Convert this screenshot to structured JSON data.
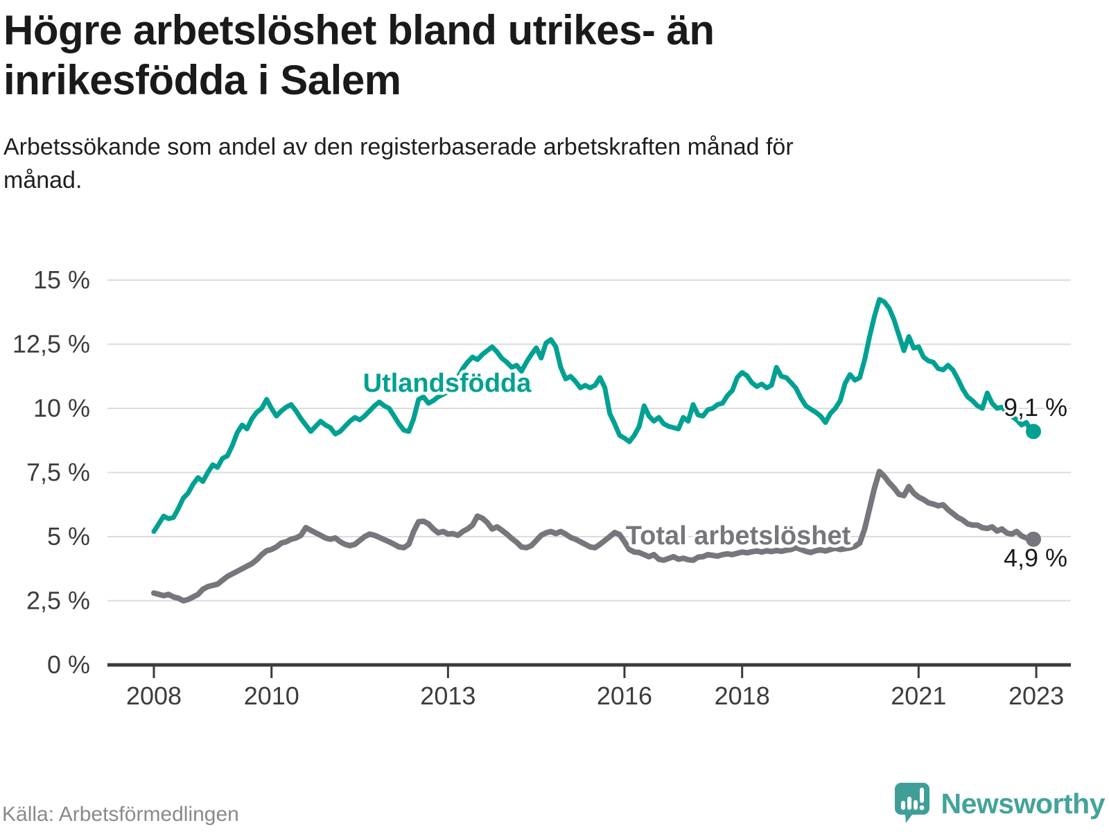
{
  "header": {
    "title": "Högre arbetslöshet bland utrikes- än inrikesfödda i Salem",
    "subtitle": "Arbetssökande som andel av den registerbaserade arbetskraften månad för månad."
  },
  "chart_data": {
    "type": "line",
    "x_start_year": 2008,
    "points_per_year": 12,
    "x_end": "2022-12",
    "ylim": [
      0,
      15
    ],
    "grid": "horizontal",
    "legend": "inline-labels",
    "colors": {
      "foreign_born": "#00a192",
      "total": "#76767c",
      "grid": "#dcdcdc",
      "axis": "#3b3b3b",
      "tick_text": "#3c3c3c",
      "end_label_text": "#1a1a1a"
    },
    "y_ticks": [
      {
        "value": 15,
        "label": "15 %"
      },
      {
        "value": 12.5,
        "label": "12,5 %"
      },
      {
        "value": 10,
        "label": "10 %"
      },
      {
        "value": 7.5,
        "label": "7,5 %"
      },
      {
        "value": 5,
        "label": "5 %"
      },
      {
        "value": 2.5,
        "label": "2,5 %"
      },
      {
        "value": 0,
        "label": "0 %"
      }
    ],
    "x_ticks": [
      {
        "year": 2008,
        "label": "2008"
      },
      {
        "year": 2010,
        "label": "2010"
      },
      {
        "year": 2013,
        "label": "2013"
      },
      {
        "year": 2016,
        "label": "2016"
      },
      {
        "year": 2018,
        "label": "2018"
      },
      {
        "year": 2021,
        "label": "2021"
      },
      {
        "year": 2023,
        "label": "2023"
      }
    ],
    "series": [
      {
        "name": "Utlandsfödda",
        "color": "#00a192",
        "end_label": "9,1 %",
        "end_value": 9.1,
        "values": [
          5.2,
          5.5,
          5.8,
          5.7,
          5.75,
          6.1,
          6.5,
          6.7,
          7.05,
          7.3,
          7.15,
          7.5,
          7.8,
          7.7,
          8.05,
          8.15,
          8.55,
          9.05,
          9.35,
          9.2,
          9.6,
          9.85,
          10.0,
          10.35,
          10.0,
          9.7,
          9.9,
          10.05,
          10.15,
          9.9,
          9.6,
          9.35,
          9.1,
          9.3,
          9.5,
          9.35,
          9.25,
          9.0,
          9.1,
          9.3,
          9.5,
          9.65,
          9.55,
          9.7,
          9.9,
          10.1,
          10.25,
          10.1,
          10.0,
          9.7,
          9.4,
          9.15,
          9.1,
          9.6,
          10.35,
          10.45,
          10.2,
          10.3,
          10.45,
          10.55,
          10.65,
          10.9,
          11.2,
          11.55,
          11.8,
          12.0,
          11.9,
          12.1,
          12.25,
          12.4,
          12.2,
          11.95,
          11.8,
          11.6,
          11.68,
          11.45,
          11.8,
          12.1,
          12.36,
          11.96,
          12.55,
          12.68,
          12.4,
          11.6,
          11.15,
          11.25,
          11.05,
          10.8,
          10.9,
          10.8,
          10.9,
          11.2,
          10.8,
          9.8,
          9.4,
          8.95,
          8.84,
          8.7,
          8.95,
          9.3,
          10.1,
          9.7,
          9.5,
          9.65,
          9.4,
          9.3,
          9.25,
          9.2,
          9.65,
          9.5,
          10.15,
          9.75,
          9.7,
          9.95,
          10.0,
          10.15,
          10.2,
          10.5,
          10.7,
          11.2,
          11.4,
          11.27,
          11.0,
          10.85,
          10.95,
          10.8,
          10.9,
          11.6,
          11.25,
          11.2,
          11.0,
          10.78,
          10.4,
          10.1,
          9.97,
          9.85,
          9.7,
          9.45,
          9.8,
          10.0,
          10.3,
          10.97,
          11.32,
          11.1,
          11.2,
          11.9,
          12.8,
          13.6,
          14.25,
          14.15,
          13.9,
          13.45,
          12.85,
          12.25,
          12.8,
          12.35,
          12.4,
          12.0,
          11.85,
          11.8,
          11.55,
          11.5,
          11.68,
          11.5,
          11.15,
          10.75,
          10.45,
          10.3,
          10.1,
          10.0,
          10.6,
          10.2,
          10.0,
          10.05,
          9.85,
          9.7,
          9.55,
          9.35,
          9.45,
          9.1
        ]
      },
      {
        "name": "Total arbetslöshet",
        "color": "#76767c",
        "end_label": "4,9 %",
        "end_value": 4.9,
        "values": [
          2.8,
          2.75,
          2.7,
          2.75,
          2.65,
          2.6,
          2.5,
          2.55,
          2.65,
          2.75,
          2.95,
          3.05,
          3.1,
          3.15,
          3.3,
          3.45,
          3.55,
          3.65,
          3.75,
          3.85,
          3.95,
          4.1,
          4.3,
          4.45,
          4.5,
          4.6,
          4.75,
          4.8,
          4.9,
          4.95,
          5.05,
          5.35,
          5.25,
          5.15,
          5.05,
          4.95,
          4.9,
          4.95,
          4.8,
          4.7,
          4.65,
          4.7,
          4.85,
          5.0,
          5.1,
          5.05,
          4.97,
          4.88,
          4.8,
          4.7,
          4.6,
          4.57,
          4.7,
          5.2,
          5.58,
          5.6,
          5.5,
          5.3,
          5.15,
          5.2,
          5.1,
          5.12,
          5.05,
          5.2,
          5.3,
          5.45,
          5.8,
          5.72,
          5.55,
          5.3,
          5.38,
          5.25,
          5.1,
          4.93,
          4.78,
          4.6,
          4.57,
          4.65,
          4.85,
          5.05,
          5.15,
          5.2,
          5.12,
          5.2,
          5.1,
          4.97,
          4.9,
          4.8,
          4.7,
          4.6,
          4.57,
          4.7,
          4.85,
          5.0,
          5.16,
          5.08,
          4.8,
          4.5,
          4.4,
          4.38,
          4.3,
          4.22,
          4.3,
          4.12,
          4.08,
          4.15,
          4.22,
          4.12,
          4.16,
          4.1,
          4.08,
          4.2,
          4.22,
          4.3,
          4.27,
          4.24,
          4.3,
          4.33,
          4.3,
          4.35,
          4.4,
          4.37,
          4.41,
          4.44,
          4.4,
          4.45,
          4.42,
          4.46,
          4.43,
          4.47,
          4.5,
          4.57,
          4.5,
          4.43,
          4.38,
          4.45,
          4.49,
          4.44,
          4.5,
          4.55,
          4.5,
          4.53,
          4.56,
          4.62,
          4.75,
          5.3,
          6.1,
          6.9,
          7.54,
          7.35,
          7.1,
          6.9,
          6.65,
          6.6,
          6.95,
          6.7,
          6.54,
          6.45,
          6.32,
          6.27,
          6.2,
          6.24,
          6.05,
          5.9,
          5.75,
          5.65,
          5.5,
          5.45,
          5.45,
          5.35,
          5.32,
          5.38,
          5.22,
          5.3,
          5.14,
          5.1,
          5.2,
          5.03,
          4.95,
          4.9
        ]
      }
    ]
  },
  "footer": {
    "source": "Källa: Arbetsförmedlingen",
    "brand": "Newsworthy"
  }
}
